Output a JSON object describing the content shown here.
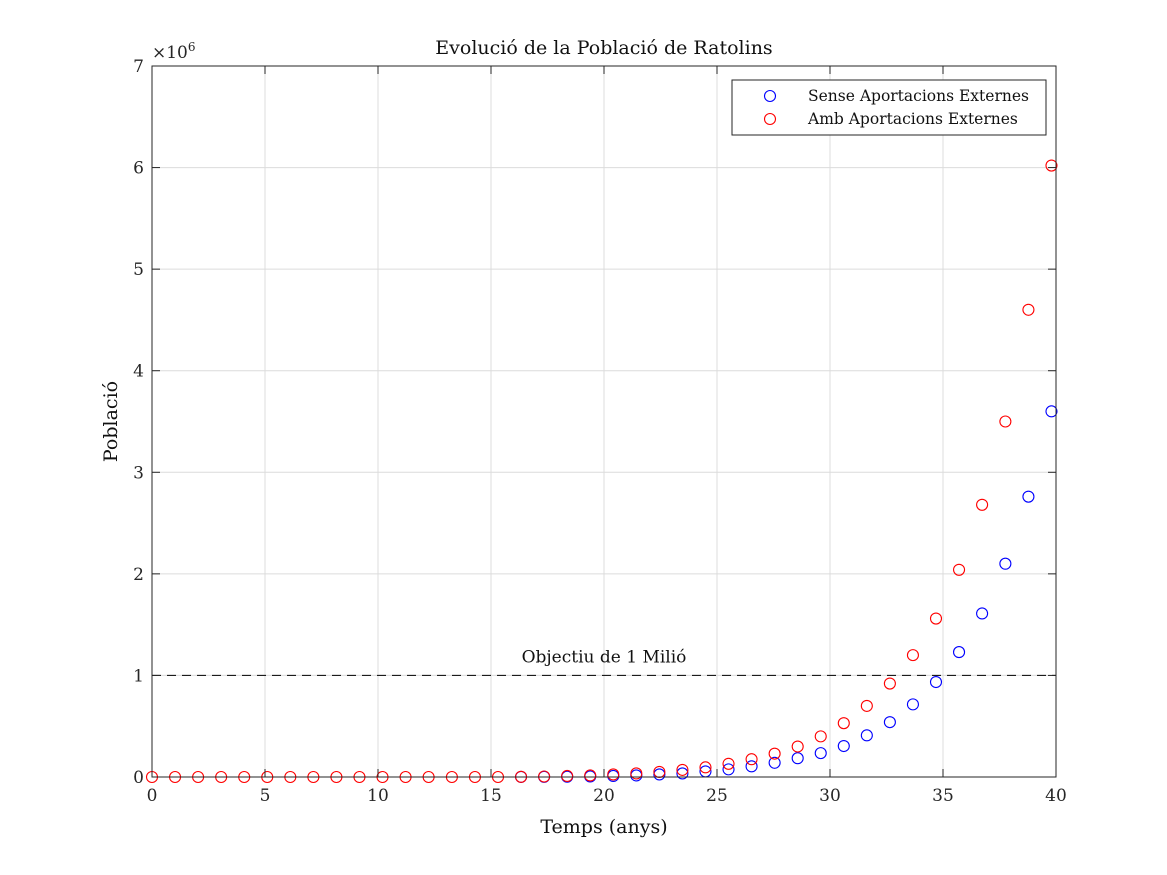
{
  "chart_data": {
    "type": "scatter",
    "title": "Evolució de la Població de Ratolins",
    "xlabel": "Temps (anys)",
    "ylabel": "Població",
    "xlim": [
      0,
      40
    ],
    "ylim": [
      0,
      7000000
    ],
    "x_ticks": [
      "0",
      "5",
      "10",
      "15",
      "20",
      "25",
      "30",
      "35",
      "40"
    ],
    "y_ticks": [
      "0",
      "1",
      "2",
      "3",
      "4",
      "5",
      "6",
      "7"
    ],
    "y_exponent_label": "×10",
    "y_exponent_power": "6",
    "grid": true,
    "legend_position": "top-right",
    "reference_line": {
      "y": 1000000,
      "label": "Objectiu de 1 Milió",
      "style": "dashed",
      "color": "#000000"
    },
    "series": [
      {
        "name": "Sense Aportacions Externes",
        "color": "#0000ff",
        "marker": "open-circle",
        "x": [
          16.33,
          17.35,
          18.37,
          19.39,
          20.41,
          21.43,
          22.45,
          23.47,
          24.49,
          25.51,
          26.53,
          27.55,
          28.57,
          29.59,
          30.61,
          31.63,
          32.65,
          33.67,
          34.69,
          35.71,
          36.73,
          37.76,
          38.78,
          39.8
        ],
        "y": [
          1000,
          2000,
          3000,
          5000,
          10000,
          15000,
          25000,
          35000,
          55000,
          75000,
          105000,
          140000,
          185000,
          235000,
          305000,
          410000,
          540000,
          715000,
          935000,
          1230000,
          1610000,
          2100000,
          2760000,
          3600000
        ]
      },
      {
        "name": "Amb Aportacions Externes",
        "color": "#ff0000",
        "marker": "open-circle",
        "x": [
          0,
          1.02,
          2.04,
          3.06,
          4.08,
          5.1,
          6.12,
          7.14,
          8.16,
          9.18,
          10.2,
          11.22,
          12.24,
          13.27,
          14.29,
          15.31,
          16.33,
          17.35,
          18.37,
          19.39,
          20.41,
          21.43,
          22.45,
          23.47,
          24.49,
          25.51,
          26.53,
          27.55,
          28.57,
          29.59,
          30.61,
          31.63,
          32.65,
          33.67,
          34.69,
          35.71,
          36.73,
          37.76,
          38.78,
          39.8
        ],
        "y": [
          0,
          0,
          0,
          0,
          0,
          0,
          0,
          0,
          0,
          0,
          0,
          0,
          0,
          0,
          0,
          0,
          2000,
          5000,
          10000,
          15000,
          25000,
          35000,
          50000,
          70000,
          95000,
          130000,
          175000,
          230000,
          300000,
          400000,
          530000,
          700000,
          920000,
          1200000,
          1560000,
          2040000,
          2680000,
          3500000,
          4600000,
          6020000
        ]
      }
    ]
  }
}
